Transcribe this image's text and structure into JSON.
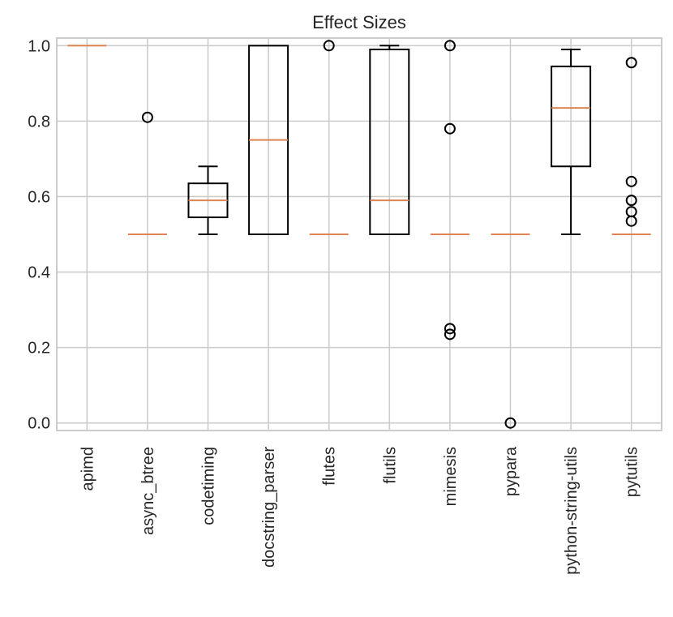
{
  "chart_data": {
    "type": "box",
    "title": "Effect Sizes",
    "xlabel": "",
    "ylabel": "",
    "ylim": [
      -0.02,
      1.02
    ],
    "yticks": [
      0.0,
      0.2,
      0.4,
      0.6,
      0.8,
      1.0
    ],
    "ytick_labels": [
      "0.0",
      "0.2",
      "0.4",
      "0.6",
      "0.8",
      "1.0"
    ],
    "grid": true,
    "categories": [
      "apimd",
      "async_btree",
      "codetiming",
      "docstring_parser",
      "flutes",
      "flutils",
      "mimesis",
      "pypara",
      "python-string-utils",
      "pytutils"
    ],
    "boxes": [
      {
        "q1": 1.0,
        "median": 1.0,
        "q3": 1.0,
        "whisker_low": 1.0,
        "whisker_high": 1.0,
        "fliers": []
      },
      {
        "q1": 0.5,
        "median": 0.5,
        "q3": 0.5,
        "whisker_low": 0.5,
        "whisker_high": 0.5,
        "fliers": [
          0.81
        ]
      },
      {
        "q1": 0.545,
        "median": 0.59,
        "q3": 0.635,
        "whisker_low": 0.5,
        "whisker_high": 0.68,
        "fliers": []
      },
      {
        "q1": 0.5,
        "median": 0.75,
        "q3": 1.0,
        "whisker_low": 0.5,
        "whisker_high": 1.0,
        "fliers": []
      },
      {
        "q1": 0.5,
        "median": 0.5,
        "q3": 0.5,
        "whisker_low": 0.5,
        "whisker_high": 0.5,
        "fliers": [
          1.0
        ]
      },
      {
        "q1": 0.5,
        "median": 0.59,
        "q3": 0.99,
        "whisker_low": 0.5,
        "whisker_high": 1.0,
        "fliers": []
      },
      {
        "q1": 0.5,
        "median": 0.5,
        "q3": 0.5,
        "whisker_low": 0.5,
        "whisker_high": 0.5,
        "fliers": [
          1.0,
          0.78,
          0.25,
          0.235
        ]
      },
      {
        "q1": 0.5,
        "median": 0.5,
        "q3": 0.5,
        "whisker_low": 0.5,
        "whisker_high": 0.5,
        "fliers": [
          0.0
        ]
      },
      {
        "q1": 0.68,
        "median": 0.835,
        "q3": 0.945,
        "whisker_low": 0.5,
        "whisker_high": 0.99,
        "fliers": []
      },
      {
        "q1": 0.5,
        "median": 0.5,
        "q3": 0.5,
        "whisker_low": 0.5,
        "whisker_high": 0.5,
        "fliers": [
          0.955,
          0.64,
          0.59,
          0.56,
          0.535
        ]
      }
    ]
  },
  "colors": {
    "median": "#dd8452",
    "box": "#000000",
    "grid": "#cccccc",
    "text": "#262626"
  }
}
